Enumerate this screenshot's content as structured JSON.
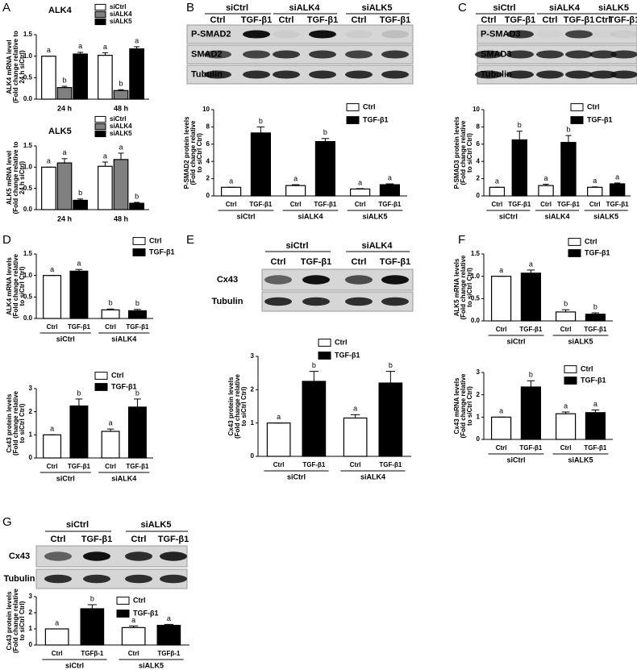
{
  "panels": [
    "A",
    "B",
    "C",
    "D",
    "E",
    "F",
    "G"
  ],
  "blots": [
    {
      "groups": [
        "siCtrl",
        "siALK4",
        "siALK5"
      ],
      "lanes": [
        "Ctrl",
        "TGF-β1"
      ],
      "rows": [
        "P-SMAD2",
        "SMAD2",
        "Tubulin"
      ]
    },
    {
      "groups": [
        "siCtrl",
        "siALK4",
        "siALK5"
      ],
      "lanes": [
        "Ctrl",
        "TGF-β1"
      ],
      "rows": [
        "P-SMAD3",
        "SMAD3",
        "Tubulin"
      ]
    },
    {
      "groups": [
        "siCtrl",
        "siALK4"
      ],
      "lanes": [
        "Ctrl",
        "TGF-β1"
      ],
      "rows": [
        "Cx43",
        "Tubulin"
      ]
    },
    {
      "groups": [
        "siCtrl",
        "siALK5"
      ],
      "lanes": [
        "Ctrl",
        "TGF-β1"
      ],
      "rows": [
        "Cx43",
        "Tubulin"
      ]
    }
  ],
  "chart_data": [
    {
      "type": "bar",
      "title": "ALK4",
      "ylabel": [
        "ALK4 mRNA level",
        "(Fold change relative to",
        "24 h siCtrl)"
      ],
      "categories": [
        "24 h",
        "48 h"
      ],
      "series": [
        {
          "name": "siCtrl",
          "color": "#ffffff",
          "values": [
            1.0,
            1.02
          ],
          "errors": [
            0.0,
            0.06
          ],
          "letters": [
            "a",
            "a"
          ]
        },
        {
          "name": "siALK4",
          "color": "#808080",
          "values": [
            0.27,
            0.2
          ],
          "errors": [
            0.03,
            0.02
          ],
          "letters": [
            "b",
            "b"
          ]
        },
        {
          "name": "siALK5",
          "color": "#000000",
          "values": [
            1.05,
            1.17
          ],
          "errors": [
            0.04,
            0.05
          ],
          "letters": [
            "a",
            "a"
          ]
        }
      ],
      "ylim": [
        0,
        1.5
      ],
      "yticks": [
        {
          "value": 0,
          "label": "0.0"
        },
        {
          "value": 0.5,
          "label": "0.5"
        },
        {
          "value": 1,
          "label": "1.0"
        },
        {
          "value": 1.5,
          "label": "1.5"
        }
      ]
    },
    {
      "type": "bar",
      "title": "ALK5",
      "ylabel": [
        "ALK5 mRNA level",
        "(Fold change relative to",
        "24 h siCtrl)"
      ],
      "categories": [
        "24 h",
        "48 h"
      ],
      "series": [
        {
          "name": "siCtrl",
          "color": "#ffffff",
          "values": [
            1.0,
            1.02
          ],
          "errors": [
            0.0,
            0.1
          ],
          "letters": [
            "a",
            "a"
          ]
        },
        {
          "name": "siALK4",
          "color": "#808080",
          "values": [
            1.1,
            1.18
          ],
          "errors": [
            0.1,
            0.15
          ],
          "letters": [
            "a",
            "a"
          ]
        },
        {
          "name": "siALK5",
          "color": "#000000",
          "values": [
            0.22,
            0.15
          ],
          "errors": [
            0.03,
            0.02
          ],
          "letters": [
            "b",
            "b"
          ]
        }
      ],
      "ylim": [
        0,
        1.5
      ],
      "yticks": [
        {
          "value": 0,
          "label": "0.0"
        },
        {
          "value": 0.5,
          "label": "0.5"
        },
        {
          "value": 1,
          "label": "1.0"
        },
        {
          "value": 1.5,
          "label": "1.5"
        }
      ]
    },
    {
      "type": "bar",
      "ylabel": [
        "P-SMAD2 protein levels",
        "(Fold change relative",
        "to siCtrl Ctrl)"
      ],
      "categories": [
        "siCtrl",
        "siALK4",
        "siALK5"
      ],
      "bar_labels": [
        "Ctrl",
        "TGF-β1"
      ],
      "series": [
        {
          "name": "Ctrl",
          "color": "#ffffff",
          "values": [
            1.0,
            1.2,
            0.8
          ],
          "errors": [
            0.0,
            0.1,
            0.05
          ],
          "letters": [
            "a",
            "a",
            "a"
          ]
        },
        {
          "name": "TGF-β1",
          "color": "#000000",
          "values": [
            7.3,
            6.3,
            1.3
          ],
          "errors": [
            0.7,
            0.35,
            0.1
          ],
          "letters": [
            "b",
            "b",
            "a"
          ]
        }
      ],
      "ylim": [
        0,
        10
      ],
      "yticks": [
        0,
        2,
        4,
        6,
        8,
        10
      ]
    },
    {
      "type": "bar",
      "ylabel": [
        "P-SMAD3 protein levels",
        "(Fold change relative",
        "to siCtrl Ctrl)"
      ],
      "categories": [
        "siCtrl",
        "siALK4",
        "siALK5"
      ],
      "bar_labels": [
        "Ctrl",
        "TGF-β1"
      ],
      "series": [
        {
          "name": "Ctrl",
          "color": "#ffffff",
          "values": [
            1.0,
            1.2,
            1.0
          ],
          "errors": [
            0.0,
            0.15,
            0.05
          ],
          "letters": [
            "a",
            "a",
            "a"
          ]
        },
        {
          "name": "TGF-β1",
          "color": "#000000",
          "values": [
            6.5,
            6.2,
            1.4
          ],
          "errors": [
            1.0,
            0.8,
            0.1
          ],
          "letters": [
            "b",
            "b",
            "a"
          ]
        }
      ],
      "ylim": [
        0,
        10
      ],
      "yticks": [
        0,
        2,
        4,
        6,
        8,
        10
      ]
    },
    {
      "type": "bar",
      "ylabel": [
        "ALK4 mRNA levels",
        "(Fold change relative",
        "to siCtrl Ctrl)"
      ],
      "categories": [
        "siCtrl",
        "siALK4"
      ],
      "bar_labels": [
        "Ctrl",
        "TGF-β1"
      ],
      "series": [
        {
          "name": "Ctrl",
          "color": "#ffffff",
          "values": [
            1.0,
            0.2
          ],
          "errors": [
            0.0,
            0.02
          ],
          "letters": [
            "a",
            "b"
          ]
        },
        {
          "name": "TGF-β1",
          "color": "#000000",
          "values": [
            1.1,
            0.18
          ],
          "errors": [
            0.04,
            0.03
          ],
          "letters": [
            "a",
            "b"
          ]
        }
      ],
      "ylim": [
        0,
        1.5
      ],
      "yticks": [
        {
          "value": 0,
          "label": "0.0"
        },
        {
          "value": 0.5,
          "label": "0.5"
        },
        {
          "value": 1,
          "label": "1.0"
        },
        {
          "value": 1.5,
          "label": "1.5"
        }
      ]
    },
    {
      "type": "bar",
      "ylabel": [
        "Cx43 protein levels",
        "(Fold change relative",
        "to siCtrl Ctrl)"
      ],
      "categories": [
        "siCtrl",
        "siALK4"
      ],
      "bar_labels": [
        "Ctrl",
        "TGF-β1"
      ],
      "series": [
        {
          "name": "Ctrl",
          "color": "#ffffff",
          "values": [
            1.0,
            1.15
          ],
          "errors": [
            0.0,
            0.1
          ],
          "letters": [
            "a",
            "a"
          ]
        },
        {
          "name": "TGF-β1",
          "color": "#000000",
          "values": [
            2.25,
            2.2
          ],
          "errors": [
            0.3,
            0.35
          ],
          "letters": [
            "b",
            "b"
          ]
        }
      ],
      "ylim": [
        0,
        3
      ],
      "yticks": [
        0,
        1,
        2,
        3
      ]
    },
    {
      "type": "bar",
      "ylabel": [
        "Cx43 protein levels",
        "(Fold change relative",
        "to siCtrl Ctrl)"
      ],
      "categories": [
        "siCtrl",
        "siALK4"
      ],
      "bar_labels": [
        "Ctrl",
        "TGF-β1"
      ],
      "series": [
        {
          "name": "Ctrl",
          "color": "#ffffff",
          "values": [
            1.0,
            1.15
          ],
          "errors": [
            0.0,
            0.1
          ],
          "letters": [
            "a",
            "a"
          ]
        },
        {
          "name": "TGF-β1",
          "color": "#000000",
          "values": [
            2.25,
            2.2
          ],
          "errors": [
            0.3,
            0.35
          ],
          "letters": [
            "b",
            "b"
          ]
        }
      ],
      "ylim": [
        0,
        3
      ],
      "yticks": [
        0,
        1,
        2,
        3
      ]
    },
    {
      "type": "bar",
      "ylabel": [
        "ALK5 mRNA levels",
        "(Fold change relative",
        "to siCtrl Ctrl)"
      ],
      "categories": [
        "siCtrl",
        "siALK5"
      ],
      "bar_labels": [
        "Ctrl",
        "TGF-β1"
      ],
      "series": [
        {
          "name": "Ctrl",
          "color": "#ffffff",
          "values": [
            1.0,
            0.2
          ],
          "errors": [
            0.0,
            0.05
          ],
          "letters": [
            "a",
            "b"
          ]
        },
        {
          "name": "TGF-β1",
          "color": "#000000",
          "values": [
            1.07,
            0.15
          ],
          "errors": [
            0.07,
            0.03
          ],
          "letters": [
            "a",
            "b"
          ]
        }
      ],
      "ylim": [
        0,
        1.5
      ],
      "yticks": [
        {
          "value": 0,
          "label": "0.0"
        },
        {
          "value": 0.5,
          "label": "0.5"
        },
        {
          "value": 1,
          "label": "1.0"
        },
        {
          "value": 1.5,
          "label": "1.5"
        }
      ]
    },
    {
      "type": "bar",
      "ylabel": [
        "Cx43 mRNA levels",
        "(Fold change relative",
        "to siCtrl Ctrl)"
      ],
      "categories": [
        "siCtrl",
        "siALK5"
      ],
      "bar_labels": [
        "Ctrl",
        "TGF-β1"
      ],
      "series": [
        {
          "name": "Ctrl",
          "color": "#ffffff",
          "values": [
            1.0,
            1.15
          ],
          "errors": [
            0.0,
            0.08
          ],
          "letters": [
            "a",
            "a"
          ]
        },
        {
          "name": "TGF-β1",
          "color": "#000000",
          "values": [
            2.35,
            1.2
          ],
          "errors": [
            0.28,
            0.12
          ],
          "letters": [
            "b",
            "a"
          ]
        }
      ],
      "ylim": [
        0,
        3
      ],
      "yticks": [
        0,
        1,
        2,
        3
      ]
    },
    {
      "type": "bar",
      "ylabel": [
        "Cx43 protein levels",
        "(Fold change relative",
        "to siCtrl Ctrl)"
      ],
      "categories": [
        "siCtrl",
        "siALK5"
      ],
      "bar_labels": [
        "Ctrl",
        "TGFβ-1"
      ],
      "series": [
        {
          "name": "Ctrl",
          "color": "#ffffff",
          "values": [
            1.0,
            1.08
          ],
          "errors": [
            0.0,
            0.1
          ],
          "letters": [
            "a",
            "a"
          ]
        },
        {
          "name": "TGF-β1",
          "color": "#000000",
          "values": [
            2.25,
            1.22
          ],
          "errors": [
            0.25,
            0.06
          ],
          "letters": [
            "b",
            "a"
          ]
        }
      ],
      "ylim": [
        0,
        3
      ],
      "yticks": [
        0,
        1,
        2,
        3
      ]
    }
  ]
}
